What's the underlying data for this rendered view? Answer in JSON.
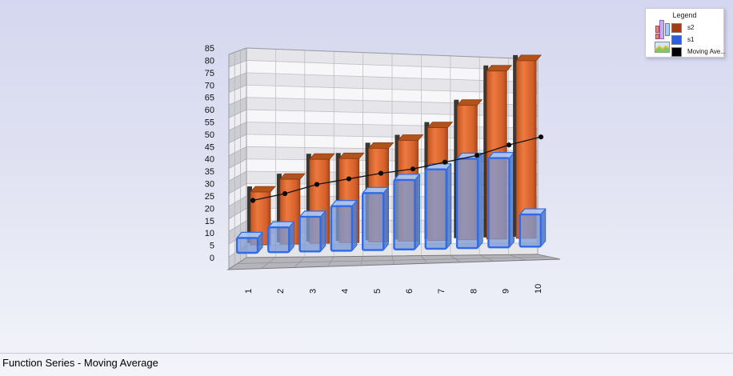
{
  "title": "Function Series - Moving Average",
  "legend": {
    "title": "Legend",
    "entries": [
      {
        "label": "s2",
        "swatch": "#a63c14"
      },
      {
        "label": "s1",
        "swatch": "#2a5fe0"
      },
      {
        "label": "Moving Ave...",
        "swatch": "#000000"
      }
    ]
  },
  "chart_data": {
    "type": "bar",
    "subtype": "3d-columns-with-moving-average-line",
    "title": "Function Series - Moving Average",
    "categories": [
      "1",
      "2",
      "3",
      "4",
      "5",
      "6",
      "7",
      "8",
      "9",
      "10"
    ],
    "series": [
      {
        "name": "s2",
        "type": "column",
        "color": "#dd6530",
        "values": [
          22,
          27,
          35,
          35,
          39,
          42,
          47,
          56,
          70,
          74
        ]
      },
      {
        "name": "s1",
        "type": "column",
        "color": "#7d9ad2",
        "values": [
          6,
          10,
          14,
          18,
          23,
          28,
          32,
          36,
          36,
          13
        ]
      },
      {
        "name": "Moving Ave...",
        "type": "line",
        "color": "#000000",
        "values": [
          20,
          22.5,
          26,
          28,
          30,
          31.5,
          34,
          36.5,
          40.5,
          43.5
        ]
      }
    ],
    "ylim": [
      0,
      85
    ],
    "ytick_step": 5,
    "yticks": [
      "0",
      "5",
      "10",
      "15",
      "20",
      "25",
      "30",
      "35",
      "40",
      "45",
      "50",
      "55",
      "60",
      "65",
      "70",
      "75",
      "80",
      "85"
    ],
    "xlabel": "",
    "ylabel": "",
    "grid": true,
    "legend_position": "top-right"
  }
}
